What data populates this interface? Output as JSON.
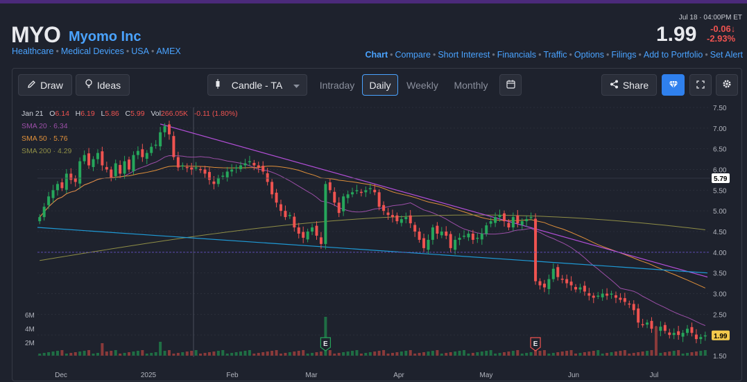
{
  "header": {
    "ticker": "MYO",
    "company": "Myomo Inc",
    "meta": [
      "Healthcare",
      "Medical Devices",
      "USA",
      "AMEX"
    ],
    "timestamp": "Jul 18 · 04:00PM ET",
    "price": "1.99",
    "change_abs": "-0.06↓",
    "change_pct": "-2.93%",
    "nav": [
      "Chart",
      "Compare",
      "Short Interest",
      "Financials",
      "Traffic",
      "Options",
      "Filings",
      "Add to Portfolio",
      "Set Alert"
    ]
  },
  "toolbar": {
    "draw": "Draw",
    "ideas": "Ideas",
    "chart_type": "Candle - TA",
    "intraday": "Intraday",
    "daily": "Daily",
    "weekly": "Weekly",
    "monthly": "Monthly",
    "share": "Share"
  },
  "legend": {
    "date": "Jan 21",
    "o_label": "O",
    "o": "6.14",
    "h_label": "H",
    "h": "6.19",
    "l_label": "L",
    "l": "5.86",
    "c_label": "C",
    "c": "5.99",
    "vol_label": "Vol",
    "vol": "266.05K",
    "chg": "-0.11 (1.80%)",
    "sma20": "SMA 20 · 6.34",
    "sma50": "SMA 50 · 5.76",
    "sma200": "SMA 200 · 4.29"
  },
  "colors": {
    "up": "#26a65b",
    "down": "#ef5350",
    "sma20": "#9c4fa8",
    "sma50": "#e0903a",
    "sma200": "#8f8e46",
    "trend_purple": "#b44fd9",
    "trend_blue": "#1e9bd7",
    "accent": "#4aa3ff"
  },
  "chart_data": {
    "type": "line",
    "title": "",
    "xlabel": "",
    "ylabel": "",
    "ylim": [
      1.5,
      7.5
    ],
    "y_ticks": [
      "7.50",
      "7.00",
      "6.50",
      "6.00",
      "5.50",
      "5.00",
      "4.50",
      "4.00",
      "3.50",
      "3.00",
      "2.50",
      "1.50"
    ],
    "x_ticks": [
      "Dec",
      "2025",
      "Feb",
      "Mar",
      "Apr",
      "May",
      "Jun",
      "Jul"
    ],
    "volume_ticks": [
      "6M",
      "4M",
      "2M"
    ],
    "price_labels": [
      "5.79",
      "1.99"
    ],
    "earnings_markers": [
      "E",
      "E"
    ],
    "series": [
      {
        "values": [
          4.85,
          5.1,
          5.35,
          5.5,
          5.65,
          5.55,
          5.9,
          5.75,
          5.7,
          6.2,
          6.35,
          6.1,
          6.25,
          6.4,
          6.1,
          6.0,
          5.8,
          6.15,
          5.9,
          6.2,
          6.0,
          6.35,
          6.45,
          6.3,
          6.4,
          6.55,
          6.6,
          6.9,
          7.05,
          6.85,
          6.3,
          6.05,
          6.1,
          6.05,
          6.0,
          6.05,
          6.0,
          5.9,
          5.75,
          5.65,
          5.8,
          5.85,
          5.95,
          6.0,
          6.05,
          6.1,
          6.15,
          6.2,
          6.1,
          6.05,
          5.95,
          5.7,
          5.4,
          5.2,
          5.0,
          4.85,
          4.9,
          4.6,
          4.45,
          4.35,
          4.5,
          4.6,
          4.4,
          4.2,
          5.65,
          5.5,
          5.2,
          4.95,
          5.35,
          5.4,
          5.45,
          5.5,
          5.45,
          5.5,
          5.55,
          5.45,
          5.1,
          5.0,
          4.9,
          4.85,
          4.75,
          4.8,
          4.85,
          4.7,
          4.5,
          4.3,
          4.1,
          4.3,
          4.6,
          4.45,
          4.5,
          4.4,
          4.1,
          4.3,
          4.35,
          4.4,
          4.45,
          4.3,
          4.35,
          4.45,
          4.65,
          4.75,
          4.85,
          4.9,
          4.75,
          4.6,
          4.85,
          4.7,
          4.75,
          4.8,
          4.85,
          3.3,
          3.2,
          3.15,
          3.35,
          3.6,
          3.4,
          3.35,
          3.25,
          3.2,
          3.1,
          3.15,
          3.05,
          2.95,
          2.9,
          2.95,
          3.0,
          2.95,
          3.0,
          2.9,
          2.85,
          2.8,
          2.75,
          2.6,
          2.3,
          2.25,
          2.3,
          2.15,
          2.1,
          2.2,
          2.1,
          2.0,
          2.05,
          2.0,
          2.05,
          2.15,
          2.05,
          1.9,
          1.95,
          1.99
        ]
      }
    ]
  }
}
